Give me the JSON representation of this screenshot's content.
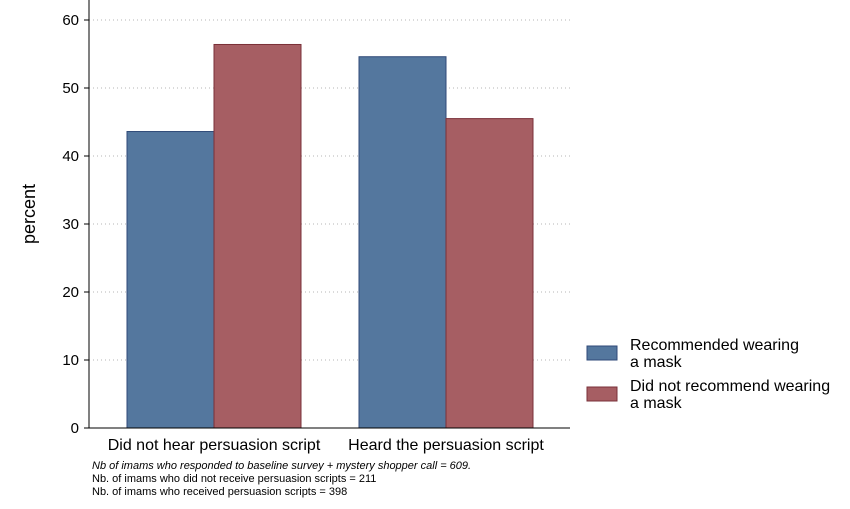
{
  "chart_data": {
    "type": "bar",
    "categories": [
      "Did not hear persuasion script",
      "Heard the persuasion script"
    ],
    "series": [
      {
        "name": "Recommended wearing a mask",
        "legend_lines": [
          "Recommended wearing",
          "a mask"
        ],
        "values": [
          43.6,
          54.6
        ],
        "color": "#54779e"
      },
      {
        "name": "Did not recommend wearing a mask",
        "legend_lines": [
          "Did not recommend wearing",
          "a mask"
        ],
        "values": [
          56.4,
          45.5
        ],
        "color": "#a65e63"
      }
    ],
    "ylabel": "percent",
    "ylim": [
      0,
      63
    ],
    "yticks": [
      0,
      10,
      20,
      30,
      40,
      50,
      60
    ],
    "grid": true,
    "legend_position": "right",
    "notes": [
      "Nb of imams who responded to baseline survey + mystery shopper call = 609.",
      "Nb. of imams who did not receive persuasion scripts = 211",
      "Nb. of imams who received persuasion scripts = 398"
    ]
  }
}
